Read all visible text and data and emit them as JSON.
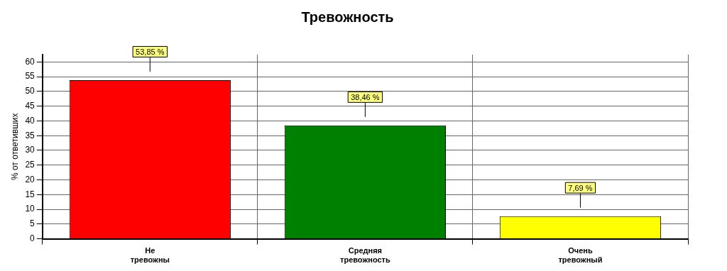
{
  "chart_data": {
    "type": "bar",
    "title": "Тревожность",
    "ylabel": "% от ответивших",
    "categories": [
      "Не тревожны",
      "Средняя тревожность",
      "Очень тревожный"
    ],
    "values": [
      53.85,
      38.46,
      7.69
    ],
    "colors": [
      "#ff0000",
      "#008000",
      "#ffff00"
    ],
    "value_labels": [
      "53,85 %",
      "38,46 %",
      "7,69 %"
    ],
    "ylim": [
      0,
      62.5
    ],
    "yticks": [
      0,
      5,
      10,
      15,
      20,
      25,
      30,
      35,
      40,
      45,
      50,
      55,
      60
    ],
    "grid": true,
    "legend": false
  }
}
